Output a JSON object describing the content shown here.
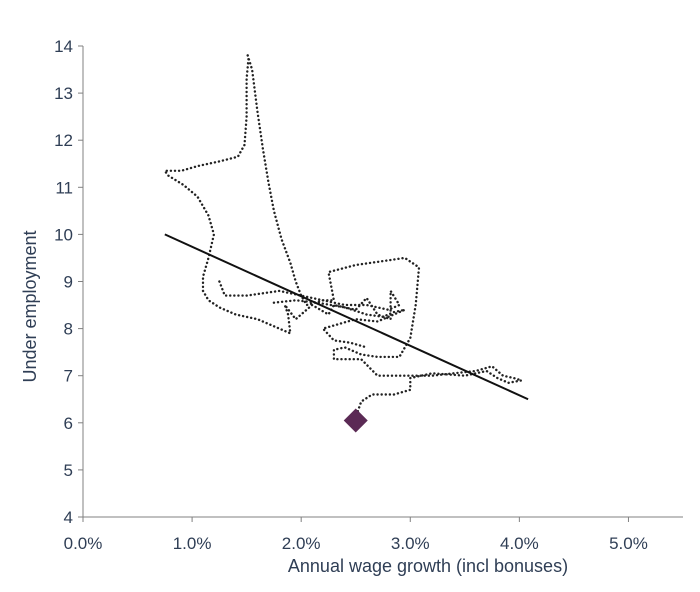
{
  "chart_data": {
    "type": "scatter",
    "title": "",
    "xlabel": "Annual wage growth (incl bonuses)",
    "ylabel": "Under employment",
    "xlim": [
      0.0,
      5.5
    ],
    "ylim": [
      4,
      14
    ],
    "x_ticks": [
      0.0,
      1.0,
      2.0,
      3.0,
      4.0,
      5.0
    ],
    "x_tick_labels": [
      "0.0%",
      "1.0%",
      "2.0%",
      "3.0%",
      "4.0%",
      "5.0%"
    ],
    "y_ticks": [
      4,
      5,
      6,
      7,
      8,
      9,
      10,
      11,
      12,
      13,
      14
    ],
    "y_tick_labels": [
      "4",
      "5",
      "6",
      "7",
      "8",
      "9",
      "10",
      "11",
      "12",
      "13",
      "14"
    ],
    "grid": false,
    "legend": "none",
    "series": [
      {
        "style": "dotted-path",
        "color": "#222222",
        "points": [
          [
            1.51,
            13.8
          ],
          [
            1.55,
            13.5
          ],
          [
            1.6,
            12.6
          ],
          [
            1.65,
            11.8
          ],
          [
            1.7,
            11.1
          ],
          [
            1.75,
            10.5
          ],
          [
            1.82,
            9.9
          ],
          [
            1.9,
            9.4
          ],
          [
            1.95,
            9.0
          ],
          [
            2.0,
            8.7
          ],
          [
            2.05,
            8.5
          ],
          [
            2.2,
            8.6
          ],
          [
            2.4,
            8.5
          ],
          [
            2.6,
            8.5
          ],
          [
            2.8,
            8.4
          ],
          [
            2.9,
            8.5
          ],
          [
            2.82,
            8.8
          ],
          [
            2.82,
            8.2
          ],
          [
            2.7,
            8.3
          ],
          [
            2.6,
            8.65
          ],
          [
            2.5,
            8.4
          ],
          [
            2.3,
            8.5
          ],
          [
            2.25,
            8.3
          ],
          [
            2.1,
            8.5
          ],
          [
            2.05,
            8.4
          ],
          [
            1.95,
            8.2
          ],
          [
            1.85,
            8.5
          ],
          [
            1.88,
            8.3
          ],
          [
            1.9,
            7.9
          ],
          [
            1.6,
            8.2
          ],
          [
            1.4,
            8.3
          ],
          [
            1.25,
            8.45
          ],
          [
            1.15,
            8.6
          ],
          [
            1.1,
            8.8
          ],
          [
            1.1,
            9.1
          ],
          [
            1.15,
            9.5
          ],
          [
            1.2,
            10.0
          ],
          [
            1.15,
            10.4
          ],
          [
            1.05,
            10.8
          ],
          [
            0.92,
            11.05
          ],
          [
            0.78,
            11.25
          ],
          [
            0.75,
            11.35
          ],
          [
            0.9,
            11.35
          ],
          [
            1.05,
            11.45
          ],
          [
            1.25,
            11.55
          ],
          [
            1.42,
            11.65
          ],
          [
            1.48,
            11.9
          ],
          [
            1.5,
            12.5
          ],
          [
            1.5,
            13.3
          ],
          [
            1.52,
            13.8
          ]
        ]
      },
      {
        "style": "dotted-path",
        "color": "#222222",
        "points": [
          [
            1.25,
            9.0
          ],
          [
            1.3,
            8.7
          ],
          [
            1.5,
            8.7
          ],
          [
            1.8,
            8.8
          ],
          [
            2.0,
            8.7
          ],
          [
            2.2,
            8.6
          ],
          [
            2.3,
            8.6
          ],
          [
            2.25,
            9.2
          ],
          [
            2.5,
            9.35
          ],
          [
            2.8,
            9.45
          ],
          [
            2.95,
            9.5
          ],
          [
            3.08,
            9.3
          ],
          [
            3.05,
            8.5
          ],
          [
            3.0,
            7.8
          ],
          [
            2.9,
            7.4
          ],
          [
            2.7,
            7.4
          ],
          [
            2.55,
            7.45
          ],
          [
            2.5,
            7.5
          ],
          [
            2.4,
            7.6
          ],
          [
            2.3,
            7.55
          ],
          [
            2.3,
            7.35
          ],
          [
            2.55,
            7.35
          ],
          [
            2.7,
            7.0
          ],
          [
            2.75,
            7.0
          ],
          [
            3.0,
            7.0
          ],
          [
            3.2,
            7.0
          ],
          [
            3.4,
            7.05
          ],
          [
            3.6,
            7.1
          ],
          [
            3.75,
            7.2
          ],
          [
            3.85,
            7.0
          ],
          [
            3.95,
            6.95
          ],
          [
            4.02,
            6.9
          ],
          [
            3.9,
            6.85
          ],
          [
            3.8,
            6.95
          ],
          [
            3.7,
            7.1
          ],
          [
            3.5,
            7.0
          ],
          [
            3.2,
            7.05
          ],
          [
            3.0,
            6.95
          ],
          [
            3.0,
            6.7
          ],
          [
            2.85,
            6.6
          ],
          [
            2.65,
            6.6
          ],
          [
            2.55,
            6.45
          ],
          [
            2.52,
            6.25
          ],
          [
            2.5,
            6.1
          ]
        ]
      },
      {
        "style": "dotted-path",
        "color": "#222222",
        "points": [
          [
            1.75,
            8.55
          ],
          [
            1.95,
            8.6
          ],
          [
            2.15,
            8.55
          ],
          [
            2.4,
            8.45
          ],
          [
            2.6,
            8.3
          ],
          [
            2.75,
            8.25
          ],
          [
            2.85,
            8.35
          ],
          [
            2.95,
            8.4
          ],
          [
            2.7,
            8.15
          ],
          [
            2.5,
            8.2
          ],
          [
            2.35,
            8.1
          ],
          [
            2.2,
            8.0
          ],
          [
            2.3,
            7.75
          ],
          [
            2.45,
            7.7
          ],
          [
            2.6,
            7.6
          ]
        ]
      }
    ],
    "trendline": {
      "x": [
        0.75,
        4.08
      ],
      "y": [
        10.0,
        6.5
      ],
      "color": "#111111"
    },
    "highlight_point": {
      "x": 2.5,
      "y": 6.05,
      "marker": "diamond",
      "color": "#5b2a55"
    }
  }
}
